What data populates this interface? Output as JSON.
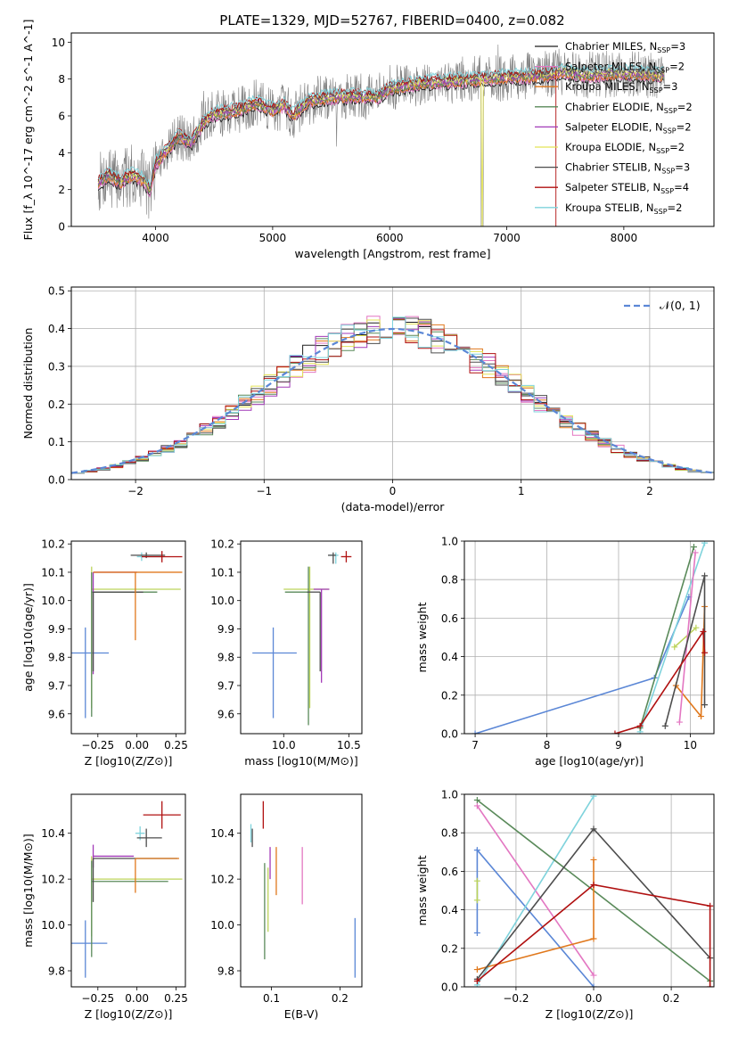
{
  "figure_title": "PLATE=1329, MJD=52767, FIBERID=0400, z=0.082",
  "colors": {
    "chabrier_miles": "#1f1f1f",
    "salpeter_miles": "#e377c2",
    "kroupa_miles": "#e0781c",
    "chabrier_elodie": "#5a8a5a",
    "salpeter_elodie": "#a23ab8",
    "kroupa_elodie": "#e3e356",
    "chabrier_stelib": "#4d4d4d",
    "salpeter_stelib": "#b01010",
    "kroupa_stelib": "#7fd3dc",
    "data": "#808080",
    "blue": "#5b87d6",
    "olive": "#bcd35a"
  },
  "chart_data": [
    {
      "id": "spectrum",
      "type": "line",
      "xlabel": "wavelength [Angstrom, rest frame]",
      "ylabel": "Flux [f_λ 10^-17 erg cm^-2 s^-1 A^-1]",
      "xlim": [
        3280,
        8770
      ],
      "ylim": [
        0,
        10.5
      ],
      "xticks": [
        "4000",
        "5000",
        "6000",
        "7000",
        "8000"
      ],
      "yticks": [
        "0",
        "2",
        "4",
        "6",
        "8",
        "10"
      ],
      "grid": false,
      "legend_position": "right",
      "legend": [
        {
          "name": "Chabrier MILES",
          "nssp": "N_SSP=3",
          "color": "#1f1f1f"
        },
        {
          "name": "Salpeter MILES",
          "nssp": "N_SSP=2",
          "color": "#e377c2"
        },
        {
          "name": "Kroupa MILES",
          "nssp": "N_SSP=3",
          "color": "#e0781c"
        },
        {
          "name": "Chabrier ELODIE",
          "nssp": "N_SSP=2",
          "color": "#5a8a5a"
        },
        {
          "name": "Salpeter ELODIE",
          "nssp": "N_SSP=2",
          "color": "#a23ab8"
        },
        {
          "name": "Kroupa ELODIE",
          "nssp": "N_SSP=2",
          "color": "#e3e356"
        },
        {
          "name": "Chabrier STELIB",
          "nssp": "N_SSP=3",
          "color": "#4d4d4d"
        },
        {
          "name": "Salpeter STELIB",
          "nssp": "N_SSP=4",
          "color": "#b01010"
        },
        {
          "name": "Kroupa STELIB",
          "nssp": "N_SSP=2",
          "color": "#7fd3dc"
        }
      ],
      "continuum": [
        [
          3500,
          2.3
        ],
        [
          3600,
          2.8
        ],
        [
          3700,
          2.4
        ],
        [
          3800,
          2.8
        ],
        [
          3900,
          2.5
        ],
        [
          3950,
          2.0
        ],
        [
          4000,
          3.4
        ],
        [
          4100,
          4.2
        ],
        [
          4200,
          4.9
        ],
        [
          4300,
          4.5
        ],
        [
          4400,
          5.6
        ],
        [
          4500,
          6.1
        ],
        [
          4700,
          6.3
        ],
        [
          4861,
          6.7
        ],
        [
          5000,
          6.3
        ],
        [
          5100,
          6.6
        ],
        [
          5175,
          6.0
        ],
        [
          5300,
          6.8
        ],
        [
          5500,
          7.0
        ],
        [
          5700,
          7.1
        ],
        [
          5890,
          7.0
        ],
        [
          6000,
          7.5
        ],
        [
          6300,
          7.8
        ],
        [
          6563,
          7.9
        ],
        [
          6800,
          8.0
        ],
        [
          7000,
          8.1
        ],
        [
          7300,
          8.2
        ],
        [
          7500,
          8.4
        ],
        [
          7700,
          8.2
        ],
        [
          7900,
          8.3
        ],
        [
          8100,
          8.3
        ],
        [
          8300,
          8.2
        ]
      ],
      "data_noise_amplitude": 1.3,
      "data_gap": [
        6780,
        6800
      ],
      "data_drop_at": 7420
    },
    {
      "id": "residuals",
      "type": "line",
      "xlabel": "(data-model)/error",
      "ylabel": "Normed distribution",
      "xlim": [
        -2.5,
        2.5
      ],
      "ylim": [
        0,
        0.51
      ],
      "xticks": [
        "−2",
        "−1",
        "0",
        "1",
        "2"
      ],
      "yticks": [
        "0.0",
        "0.1",
        "0.2",
        "0.3",
        "0.4",
        "0.5"
      ],
      "grid": true,
      "legend_position": "top-right",
      "reference_label": "𝒩(0, 1)",
      "bin_width": 0.1,
      "n_series": 9
    },
    {
      "id": "age_vs_Z",
      "type": "scatter",
      "xlabel": "Z [log10(Z/Z⊙)]",
      "ylabel": "age [log10(age/yr)]",
      "xlim": [
        -0.42,
        0.31
      ],
      "ylim": [
        9.53,
        10.21
      ],
      "xticks": [
        "−0.25",
        "0.00",
        "0.25"
      ],
      "yticks": [
        "9.6",
        "9.7",
        "9.8",
        "9.9",
        "10.0",
        "10.1",
        "10.2"
      ],
      "grid": false,
      "points": [
        {
          "x": -0.33,
          "y": 9.815,
          "xerr": [
            0.15,
            0.15
          ],
          "yerr": [
            0.23,
            0.09
          ],
          "c": "blue"
        },
        {
          "x": -0.29,
          "y": 10.04,
          "xerr": [
            0.0,
            0.57
          ],
          "yerr": [
            0.42,
            0.08
          ],
          "c": "olive"
        },
        {
          "x": -0.29,
          "y": 10.03,
          "xerr": [
            0.0,
            0.42
          ],
          "yerr": [
            0.44,
            0.07
          ],
          "c": "chabrier_elodie"
        },
        {
          "x": -0.28,
          "y": 10.1,
          "xerr": [
            0.0,
            0.28
          ],
          "yerr": [
            0.36,
            0.0
          ],
          "c": "salpeter_elodie"
        },
        {
          "x": -0.28,
          "y": 10.03,
          "xerr": [
            0.0,
            0.32
          ],
          "yerr": [
            0.28,
            0.0
          ],
          "c": "chabrier_stelib"
        },
        {
          "x": -0.01,
          "y": 10.1,
          "xerr": [
            0.27,
            0.3
          ],
          "yerr": [
            0.24,
            0.0
          ],
          "c": "kroupa_miles"
        },
        {
          "x": 0.03,
          "y": 10.155,
          "xerr": [
            0.03,
            0.14
          ],
          "yerr": [
            0.015,
            0.015
          ],
          "c": "kroupa_stelib"
        },
        {
          "x": 0.06,
          "y": 10.16,
          "xerr": [
            0.1,
            0.12
          ],
          "yerr": [
            0.01,
            0.01
          ],
          "c": "chabrier_stelib"
        },
        {
          "x": 0.16,
          "y": 10.155,
          "xerr": [
            0.13,
            0.13
          ],
          "yerr": [
            0.02,
            0.02
          ],
          "c": "salpeter_stelib"
        }
      ]
    },
    {
      "id": "age_vs_mass",
      "type": "scatter",
      "xlabel": "mass [log10(M/M⊙)]",
      "ylabel": "",
      "xlim": [
        9.67,
        10.6
      ],
      "ylim": [
        9.53,
        10.21
      ],
      "xticks": [
        "10.0",
        "10.5"
      ],
      "yticks": [
        "9.6",
        "9.7",
        "9.8",
        "9.9",
        "10.0",
        "10.1",
        "10.2"
      ],
      "grid": false,
      "points": [
        {
          "x": 9.92,
          "y": 9.815,
          "xerr": [
            0.16,
            0.18
          ],
          "yerr": [
            0.23,
            0.09
          ],
          "c": "blue"
        },
        {
          "x": 10.2,
          "y": 10.04,
          "xerr": [
            0.2,
            0.15
          ],
          "yerr": [
            0.42,
            0.08
          ],
          "c": "olive"
        },
        {
          "x": 10.19,
          "y": 10.03,
          "xerr": [
            0.18,
            0.0
          ],
          "yerr": [
            0.47,
            0.09
          ],
          "c": "chabrier_elodie"
        },
        {
          "x": 10.29,
          "y": 10.04,
          "xerr": [
            0.06,
            0.06
          ],
          "yerr": [
            0.33,
            0.0
          ],
          "c": "salpeter_elodie"
        },
        {
          "x": 10.28,
          "y": 10.03,
          "xerr": [
            0.1,
            0.0
          ],
          "yerr": [
            0.28,
            0.0
          ],
          "c": "chabrier_stelib"
        },
        {
          "x": 10.4,
          "y": 10.16,
          "xerr": [
            0.05,
            0.02
          ],
          "yerr": [
            0.03,
            0.01
          ],
          "c": "kroupa_stelib"
        },
        {
          "x": 10.38,
          "y": 10.16,
          "xerr": [
            0.04,
            0.02
          ],
          "yerr": [
            0.03,
            0.01
          ],
          "c": "chabrier_stelib"
        },
        {
          "x": 10.48,
          "y": 10.155,
          "xerr": [
            0.04,
            0.04
          ],
          "yerr": [
            0.02,
            0.02
          ],
          "c": "salpeter_stelib"
        }
      ]
    },
    {
      "id": "weight_vs_age",
      "type": "line",
      "xlabel": "age [log10(age/yr)]",
      "ylabel": "mass weight",
      "xlim": [
        6.85,
        10.33
      ],
      "ylim": [
        0,
        1.0
      ],
      "xticks": [
        "7",
        "8",
        "9",
        "10"
      ],
      "yticks": [
        "0.0",
        "0.2",
        "0.4",
        "0.6",
        "0.8",
        "1.0"
      ],
      "grid": true,
      "series": [
        {
          "c": "blue",
          "points": [
            [
              7.0,
              0.0
            ],
            [
              9.5,
              0.29
            ],
            [
              9.98,
              0.71
            ]
          ]
        },
        {
          "c": "kroupa_stelib",
          "points": [
            [
              9.3,
              0.01
            ],
            [
              10.2,
              0.99
            ]
          ]
        },
        {
          "c": "chabrier_elodie",
          "points": [
            [
              9.3,
              0.03
            ],
            [
              10.05,
              0.97
            ]
          ]
        },
        {
          "c": "olive",
          "points": [
            [
              9.78,
              0.45
            ],
            [
              10.08,
              0.55
            ]
          ]
        },
        {
          "c": "kroupa_miles",
          "points": [
            [
              9.8,
              0.25
            ],
            [
              10.15,
              0.09
            ],
            [
              10.2,
              0.66
            ]
          ]
        },
        {
          "c": "salpeter_miles",
          "points": [
            [
              9.85,
              0.06
            ],
            [
              10.07,
              0.94
            ]
          ]
        },
        {
          "c": "chabrier_stelib",
          "points": [
            [
              9.65,
              0.04
            ],
            [
              10.2,
              0.82
            ],
            [
              10.2,
              0.15
            ]
          ]
        },
        {
          "c": "salpeter_stelib",
          "points": [
            [
              8.95,
              0.0
            ],
            [
              9.3,
              0.04
            ],
            [
              10.18,
              0.53
            ],
            [
              10.2,
              0.42
            ]
          ]
        }
      ]
    },
    {
      "id": "mass_vs_Z",
      "type": "scatter",
      "xlabel": "Z [log10(Z/Z⊙)]",
      "ylabel": "mass [log10(M/M⊙)]",
      "xlim": [
        -0.42,
        0.31
      ],
      "ylim": [
        9.73,
        10.57
      ],
      "xticks": [
        "−0.25",
        "0.00",
        "0.25"
      ],
      "yticks": [
        "9.8",
        "10.0",
        "10.2",
        "10.4"
      ],
      "grid": false,
      "points": [
        {
          "x": -0.33,
          "y": 9.92,
          "xerr": [
            0.14,
            0.14
          ],
          "yerr": [
            0.15,
            0.1
          ],
          "c": "blue"
        },
        {
          "x": -0.29,
          "y": 10.2,
          "xerr": [
            0.0,
            0.58
          ],
          "yerr": [
            0.25,
            0.1
          ],
          "c": "olive"
        },
        {
          "x": -0.29,
          "y": 10.19,
          "xerr": [
            0.0,
            0.49
          ],
          "yerr": [
            0.33,
            0.09
          ],
          "c": "chabrier_elodie"
        },
        {
          "x": -0.28,
          "y": 10.3,
          "xerr": [
            0.0,
            0.26
          ],
          "yerr": [
            0.05,
            0.05
          ],
          "c": "salpeter_elodie"
        },
        {
          "x": -0.28,
          "y": 10.29,
          "xerr": [
            0.0,
            0.54
          ],
          "yerr": [
            0.19,
            0.0
          ],
          "c": "chabrier_stelib"
        },
        {
          "x": -0.01,
          "y": 10.29,
          "xerr": [
            0.0,
            0.28
          ],
          "yerr": [
            0.15,
            0.0
          ],
          "c": "kroupa_miles"
        },
        {
          "x": 0.02,
          "y": 10.4,
          "xerr": [
            0.03,
            0.03
          ],
          "yerr": [
            0.03,
            0.03
          ],
          "c": "kroupa_stelib"
        },
        {
          "x": 0.06,
          "y": 10.38,
          "xerr": [
            0.06,
            0.1
          ],
          "yerr": [
            0.04,
            0.04
          ],
          "c": "chabrier_stelib"
        },
        {
          "x": 0.16,
          "y": 10.48,
          "xerr": [
            0.12,
            0.12
          ],
          "yerr": [
            0.06,
            0.06
          ],
          "c": "salpeter_stelib"
        }
      ]
    },
    {
      "id": "mass_vs_ebv",
      "type": "scatter",
      "xlabel": "E(B-V)",
      "ylabel": "",
      "xlim": [
        0.055,
        0.232
      ],
      "ylim": [
        9.73,
        10.57
      ],
      "xticks": [
        "0.1",
        "0.2"
      ],
      "yticks": [
        "9.8",
        "10.0",
        "10.2",
        "10.4"
      ],
      "grid": false,
      "points": [
        {
          "x": 0.07,
          "y": 10.4,
          "yerr": [
            0.04,
            0.04
          ],
          "c": "kroupa_stelib"
        },
        {
          "x": 0.072,
          "y": 10.38,
          "yerr": [
            0.04,
            0.04
          ],
          "c": "chabrier_stelib"
        },
        {
          "x": 0.088,
          "y": 10.48,
          "yerr": [
            0.06,
            0.06
          ],
          "c": "salpeter_stelib"
        },
        {
          "x": 0.09,
          "y": 10.06,
          "yerr": [
            0.21,
            0.21
          ],
          "c": "chabrier_elodie"
        },
        {
          "x": 0.095,
          "y": 10.1,
          "yerr": [
            0.13,
            0.15
          ],
          "c": "olive"
        },
        {
          "x": 0.098,
          "y": 10.27,
          "yerr": [
            0.07,
            0.07
          ],
          "c": "salpeter_elodie"
        },
        {
          "x": 0.107,
          "y": 10.24,
          "yerr": [
            0.11,
            0.1
          ],
          "c": "kroupa_miles"
        },
        {
          "x": 0.145,
          "y": 10.21,
          "yerr": [
            0.12,
            0.13
          ],
          "c": "salpeter_miles"
        },
        {
          "x": 0.222,
          "y": 9.9,
          "yerr": [
            0.13,
            0.13
          ],
          "c": "blue"
        }
      ]
    },
    {
      "id": "weight_vs_Z",
      "type": "line",
      "xlabel": "Z [log10(Z/Z⊙)]",
      "ylabel": "mass weight",
      "xlim": [
        -0.333,
        0.31
      ],
      "ylim": [
        0,
        1.0
      ],
      "xticks": [
        "−0.2",
        "0.0",
        "0.2"
      ],
      "yticks": [
        "0.0",
        "0.2",
        "0.4",
        "0.6",
        "0.8",
        "1.0"
      ],
      "grid": true,
      "series": [
        {
          "c": "blue",
          "points": [
            [
              -0.3,
              0.28
            ],
            [
              -0.3,
              0.71
            ],
            [
              0.0,
              0.0
            ]
          ]
        },
        {
          "c": "olive",
          "points": [
            [
              -0.3,
              0.45
            ],
            [
              -0.3,
              0.55
            ]
          ]
        },
        {
          "c": "salpeter_miles",
          "points": [
            [
              -0.3,
              0.94
            ],
            [
              0.0,
              0.06
            ]
          ]
        },
        {
          "c": "kroupa_stelib",
          "points": [
            [
              -0.3,
              0.01
            ],
            [
              0.0,
              0.99
            ]
          ]
        },
        {
          "c": "chabrier_elodie",
          "points": [
            [
              -0.3,
              0.97
            ],
            [
              0.3,
              0.03
            ]
          ]
        },
        {
          "c": "kroupa_miles",
          "points": [
            [
              -0.3,
              0.09
            ],
            [
              0.0,
              0.25
            ],
            [
              0.0,
              0.66
            ]
          ]
        },
        {
          "c": "chabrier_stelib",
          "points": [
            [
              -0.3,
              0.04
            ],
            [
              0.0,
              0.82
            ],
            [
              0.3,
              0.15
            ]
          ]
        },
        {
          "c": "salpeter_stelib",
          "points": [
            [
              -0.3,
              0.03
            ],
            [
              0.0,
              0.53
            ],
            [
              0.3,
              0.42
            ],
            [
              0.3,
              0.0
            ]
          ]
        }
      ]
    }
  ]
}
